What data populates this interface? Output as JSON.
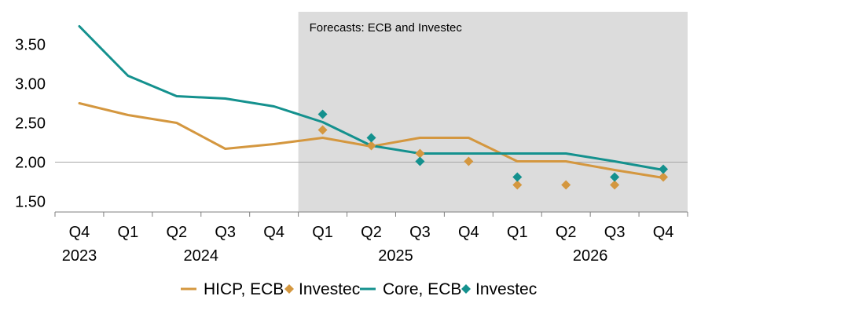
{
  "chart_data": {
    "type": "line",
    "annotation": "Forecasts: ECB and Investec",
    "forecast_region_start_index": 4.5,
    "x_quarters": [
      "Q4",
      "Q1",
      "Q2",
      "Q3",
      "Q4",
      "Q1",
      "Q2",
      "Q3",
      "Q4",
      "Q1",
      "Q2",
      "Q3",
      "Q4"
    ],
    "x_years": [
      {
        "label": "2023",
        "center_index": 0
      },
      {
        "label": "2024",
        "center_index": 2.5
      },
      {
        "label": "2025",
        "center_index": 6.5
      },
      {
        "label": "2026",
        "center_index": 10.5
      }
    ],
    "y_ticks": [
      {
        "value": 1.5,
        "label": "1.50"
      },
      {
        "value": 2.0,
        "label": "2.00"
      },
      {
        "value": 2.5,
        "label": "2.50"
      },
      {
        "value": 3.0,
        "label": "3.00"
      },
      {
        "value": 3.5,
        "label": "3.50"
      }
    ],
    "ylim": [
      1.35,
      3.9
    ],
    "reference_line": 2.0,
    "series": [
      {
        "name": "HICP, ECB",
        "kind": "line",
        "color": "#D4973F",
        "values": [
          2.75,
          2.6,
          2.5,
          2.17,
          2.23,
          2.31,
          2.2,
          2.31,
          2.31,
          2.01,
          2.01,
          1.9,
          1.8
        ]
      },
      {
        "name": "Investec",
        "kind": "marker",
        "color": "#D4973F",
        "values": [
          null,
          null,
          null,
          null,
          null,
          2.41,
          2.21,
          2.11,
          2.01,
          1.71,
          1.71,
          1.71,
          1.81
        ]
      },
      {
        "name": "Core, ECB",
        "kind": "line",
        "color": "#14918E",
        "values": [
          3.73,
          3.1,
          2.84,
          2.81,
          2.71,
          2.51,
          2.21,
          2.11,
          2.11,
          2.11,
          2.11,
          2.01,
          1.9
        ]
      },
      {
        "name": "Investec",
        "kind": "marker",
        "color": "#14918E",
        "values": [
          null,
          null,
          null,
          null,
          null,
          2.61,
          2.31,
          2.01,
          null,
          1.81,
          null,
          1.81,
          1.91
        ]
      }
    ]
  },
  "legend": [
    {
      "label": "HICP, ECB",
      "kind": "line",
      "color": "#D4973F"
    },
    {
      "label": "Investec",
      "kind": "marker",
      "color": "#D4973F"
    },
    {
      "label": "Core, ECB",
      "kind": "line",
      "color": "#14918E"
    },
    {
      "label": "Investec",
      "kind": "marker",
      "color": "#14918E"
    }
  ],
  "colors": {
    "forecast_shade": "#DCDCDC",
    "reference_line": "#A6A6A6",
    "axis": "#7F7F7F"
  }
}
